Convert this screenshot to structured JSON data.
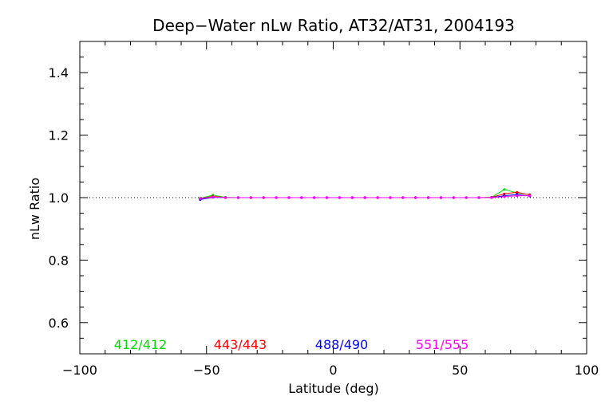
{
  "chart_data": {
    "type": "line",
    "title": "Deep−Water nLw Ratio, AT32/AT31, 2004193",
    "xlabel": "Latitude (deg)",
    "ylabel": "nLw Ratio",
    "xlim": [
      -100,
      100
    ],
    "ylim": [
      0.5,
      1.5
    ],
    "xticks": [
      -100,
      -50,
      0,
      50,
      100
    ],
    "xtick_labels": [
      "−100",
      "−50",
      "0",
      "50",
      "100"
    ],
    "yticks": [
      0.6,
      0.8,
      1.0,
      1.2,
      1.4
    ],
    "ytick_labels": [
      "0.6",
      "0.8",
      "1.0",
      "1.2",
      "1.4"
    ],
    "reference_line": 1.0,
    "x": [
      -52.5,
      -47.5,
      -42.5,
      -37.5,
      -32.5,
      -27.5,
      -22.5,
      -17.5,
      -12.5,
      -7.5,
      -2.5,
      2.5,
      7.5,
      12.5,
      17.5,
      22.5,
      27.5,
      32.5,
      37.5,
      42.5,
      47.5,
      52.5,
      57.5,
      62.5,
      67.5,
      72.5,
      77.5
    ],
    "series": [
      {
        "name": "412/412",
        "color": "#00dd00",
        "values": [
          0.998,
          1.008,
          1.001,
          1.0,
          1.0,
          1.0,
          1.0,
          1.0,
          1.0,
          1.0,
          1.0,
          1.0,
          1.0,
          1.0,
          1.0,
          1.0,
          1.0,
          1.0,
          1.0,
          1.0,
          1.0,
          1.0,
          1.0,
          1.001,
          1.026,
          1.015,
          1.01
        ]
      },
      {
        "name": "443/443",
        "color": "#ff0000",
        "values": [
          0.997,
          1.004,
          1.0,
          1.0,
          1.0,
          1.0,
          1.0,
          1.0,
          1.0,
          1.0,
          1.0,
          1.0,
          1.0,
          1.0,
          1.0,
          1.0,
          1.0,
          1.0,
          1.0,
          1.0,
          1.0,
          1.0,
          1.0,
          1.001,
          1.012,
          1.017,
          1.009
        ]
      },
      {
        "name": "488/490",
        "color": "#0000ff",
        "values": [
          0.994,
          1.001,
          1.0,
          1.0,
          1.0,
          1.0,
          1.0,
          1.0,
          1.0,
          1.0,
          1.0,
          1.0,
          1.0,
          1.0,
          1.0,
          1.0,
          1.0,
          1.0,
          1.0,
          1.0,
          1.0,
          1.0,
          1.0,
          1.0,
          1.006,
          1.01,
          1.005
        ]
      },
      {
        "name": "551/555",
        "color": "#ff00ff",
        "values": [
          0.997,
          1.002,
          1.0,
          1.0,
          1.0,
          1.0,
          1.0,
          1.0,
          1.0,
          1.0,
          1.0,
          1.0,
          1.0,
          1.0,
          1.0,
          1.0,
          1.0,
          1.0,
          1.0,
          1.0,
          1.0,
          1.0,
          1.0,
          1.0,
          1.003,
          1.006,
          1.006
        ]
      }
    ],
    "legend_position": "bottom, inside plot, horizontal",
    "grid": false
  }
}
